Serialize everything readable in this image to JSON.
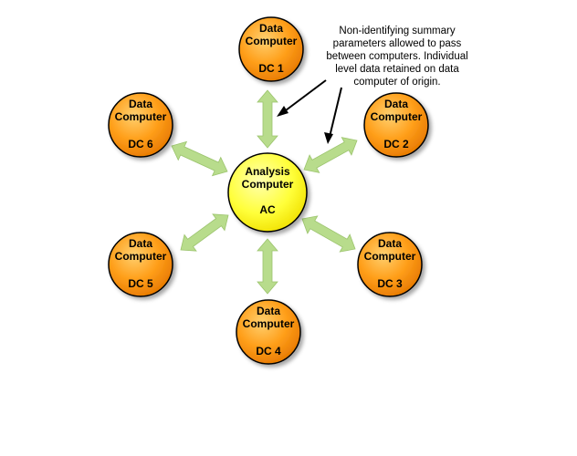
{
  "center": {
    "line1": "Analysis",
    "line2": "Computer",
    "id": "AC",
    "fill_color": "#ffff3a",
    "stroke_color": "#000000"
  },
  "data_computers": [
    {
      "line1": "Data",
      "line2": "Computer",
      "id": "DC 1"
    },
    {
      "line1": "Data",
      "line2": "Computer",
      "id": "DC 2"
    },
    {
      "line1": "Data",
      "line2": "Computer",
      "id": "DC 3"
    },
    {
      "line1": "Data",
      "line2": "Computer",
      "id": "DC 4"
    },
    {
      "line1": "Data",
      "line2": "Computer",
      "id": "DC 5"
    },
    {
      "line1": "Data",
      "line2": "Computer",
      "id": "DC 6"
    }
  ],
  "node_fill_color": "#ff9a10",
  "connector_color": "#b8dc8c",
  "annotation": {
    "lines": [
      "Non-identifying summary",
      "parameters allowed to pass",
      "between computers. Individual",
      "level data retained on data",
      "computer of origin."
    ]
  }
}
